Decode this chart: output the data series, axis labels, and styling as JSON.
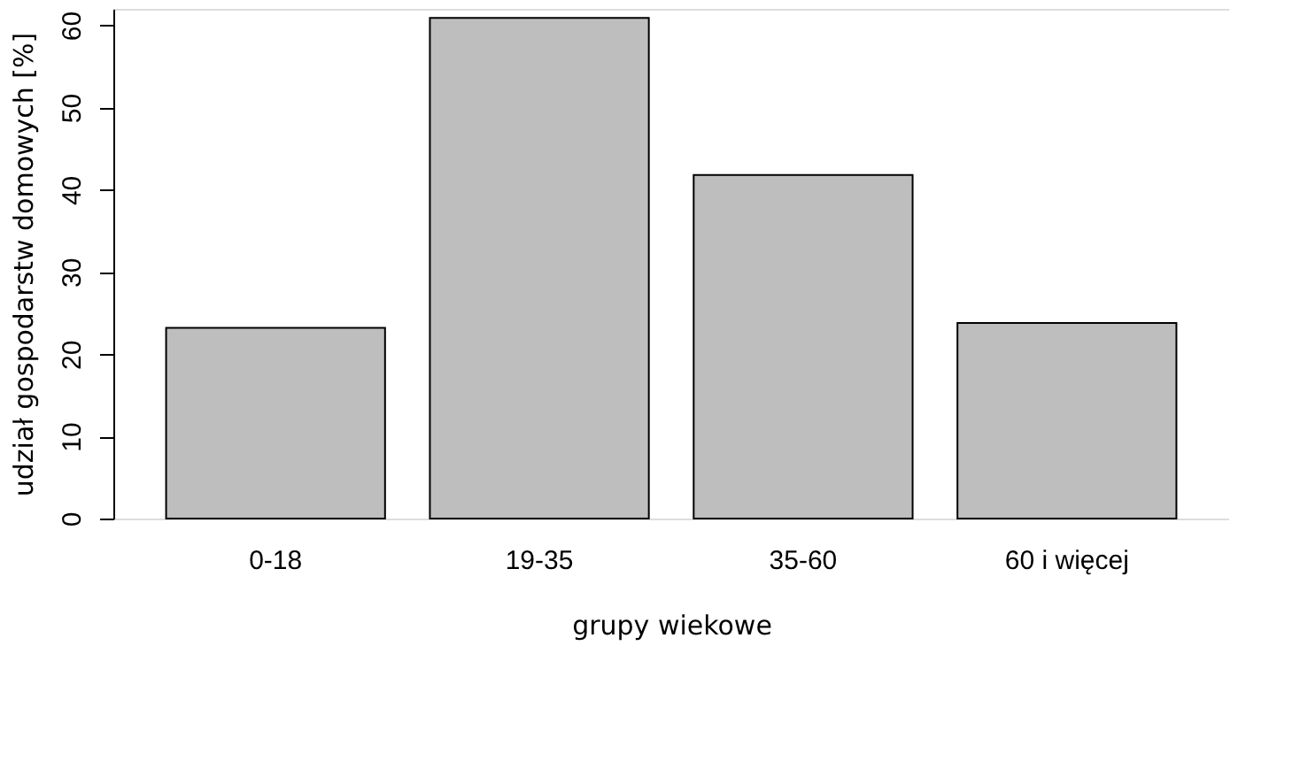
{
  "chart_data": {
    "type": "bar",
    "xlabel": "grupy wiekowe",
    "ylabel": "udział gospodarstw domowych [%]",
    "categories": [
      "0-18",
      "19-35",
      "35-60",
      "60 i więcej"
    ],
    "values": [
      23.2,
      60.9,
      41.8,
      23.8
    ],
    "color": "#bebebe",
    "ylim": [
      0,
      62
    ],
    "yticks": [
      0,
      10,
      20,
      30,
      40,
      50,
      60
    ],
    "grid": false
  }
}
